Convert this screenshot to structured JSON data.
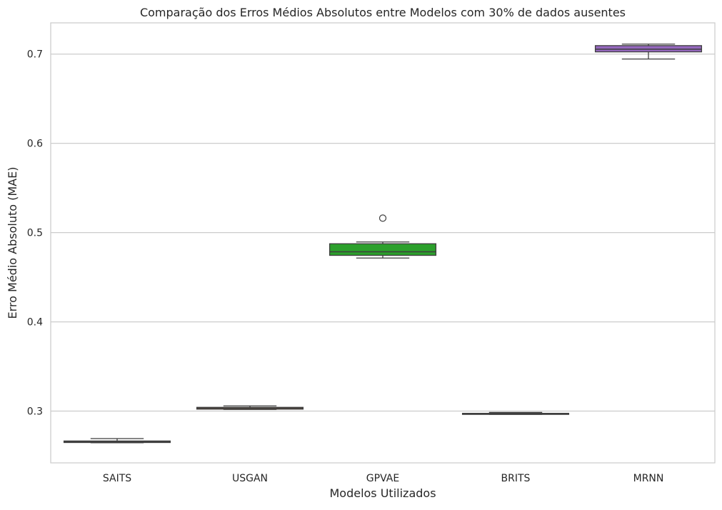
{
  "chart_data": {
    "type": "box",
    "title": "Comparação dos Erros Médios Absolutos entre Modelos com 30% de dados ausentes",
    "xlabel": "Modelos Utilizados",
    "ylabel": "Erro Médio Absoluto (MAE)",
    "ylim": [
      0.242,
      0.735
    ],
    "yticks": [
      "0.3",
      "0.4",
      "0.5",
      "0.6",
      "0.7"
    ],
    "grid": "horizontal",
    "categories": [
      "SAITS",
      "USGAN",
      "GPVAE",
      "BRITS",
      "MRNN"
    ],
    "boxes": [
      {
        "category": "SAITS",
        "color": "#1f77b4",
        "whisker_low": 0.2645,
        "q1": 0.2648,
        "median": 0.2655,
        "q3": 0.2665,
        "whisker_high": 0.2692,
        "outliers": []
      },
      {
        "category": "USGAN",
        "color": "#ff7f0e",
        "whisker_low": 0.3018,
        "q1": 0.3022,
        "median": 0.3032,
        "q3": 0.3042,
        "whisker_high": 0.3058,
        "outliers": []
      },
      {
        "category": "GPVAE",
        "color": "#2ca02c",
        "whisker_low": 0.4715,
        "q1": 0.4745,
        "median": 0.4785,
        "q3": 0.4875,
        "whisker_high": 0.4895,
        "outliers": [
          0.5162
        ]
      },
      {
        "category": "BRITS",
        "color": "#d62728",
        "whisker_low": 0.2963,
        "q1": 0.2966,
        "median": 0.297,
        "q3": 0.2975,
        "whisker_high": 0.2985,
        "outliers": []
      },
      {
        "category": "MRNN",
        "color": "#9467bd",
        "whisker_low": 0.6945,
        "q1": 0.7025,
        "median": 0.7055,
        "q3": 0.7095,
        "whisker_high": 0.7112,
        "outliers": []
      }
    ]
  }
}
